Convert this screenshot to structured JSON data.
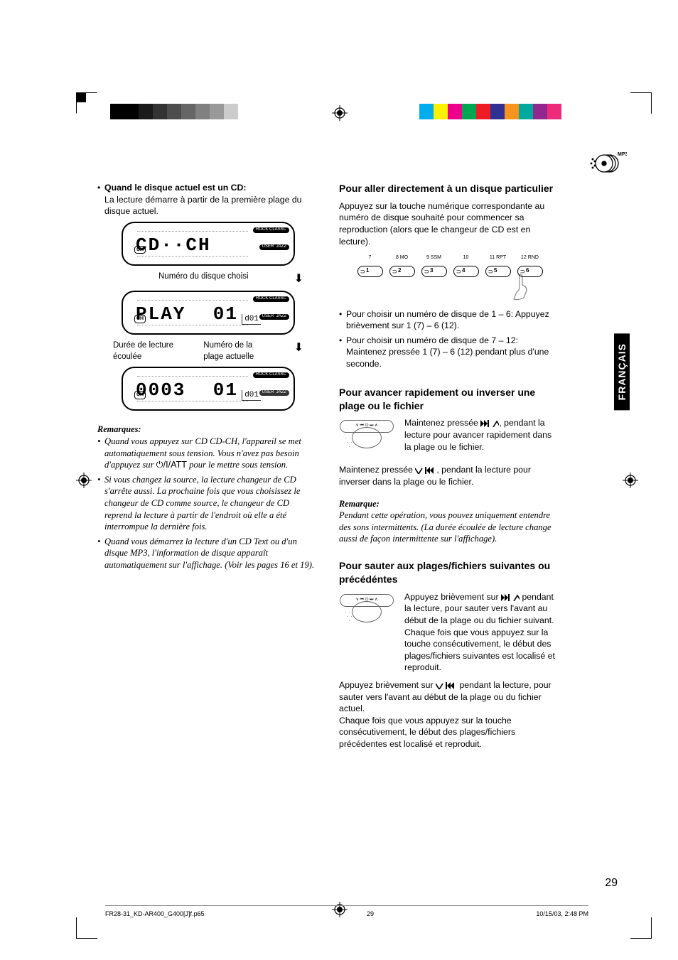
{
  "registration_bars": {
    "left_colors": [
      "#000000",
      "#000000",
      "#1a1a1a",
      "#333333",
      "#4d4d4d",
      "#666666",
      "#808080",
      "#999999",
      "#cccccc",
      "#ffffff"
    ],
    "right_colors": [
      "#00aeef",
      "#fff200",
      "#ec008c",
      "#00a651",
      "#ed1c24",
      "#2e3192",
      "#f7941d",
      "#00a99d",
      "#92278f",
      "#ee2a7b"
    ]
  },
  "mp3_label": "MP3",
  "left_col": {
    "bullet1_bold": "Quand le disque actuel est un CD:",
    "bullet1_text": "La lecture démarre à partir de la première plage du disque actuel.",
    "lcd1": {
      "main": "CD··CH",
      "d": "",
      "tags": [
        "ROCK CLASSC",
        "USER  JAZZ"
      ]
    },
    "caption1": "Numéro du disque choisi",
    "lcd2": {
      "main_l": "PLAY",
      "main_r": "01",
      "d": "d01"
    },
    "caption2_l": "Durée de lecture écoulée",
    "caption2_r": "Numéro de la plage actuelle",
    "lcd3": {
      "main_l": "0003",
      "main_r": "01",
      "d": "d01"
    },
    "remarks_title": "Remarques:",
    "rem1": "Quand vous appuyez sur CD CD-CH, l'appareil se met automatiquement sous tension. Vous n'avez pas besoin d'appuyez sur ",
    "rem1_sym": "⏻/I/ATT",
    "rem1_end": " pour le mettre sous tension.",
    "rem2": "Si vous changez la source, la lecture changeur de CD s'arrête aussi. La prochaine fois que vous choisissez le changeur de CD comme source, le changeur de CD reprend la lecture à partir de l'endroit où elle a été interrompue la dernière fois.",
    "rem3": "Quand vous démarrez la lecture d'un CD Text ou d'un disque MP3, l'information de disque apparaît automatiquement sur l'affichage. (Voir les pages 16 et 19)."
  },
  "right_col": {
    "h1": "Pour aller directement à un disque particulier",
    "p1": "Appuyez sur la touche numérique correspondante au numéro de disque souhaité pour commencer sa reproduction (alors que le changeur de CD est en lecture).",
    "btn_tops": [
      "7",
      "8  MO",
      "9  SSM",
      "10",
      "11 RPT",
      "12 RND"
    ],
    "btns": [
      "1",
      "2",
      "3",
      "4",
      "5",
      "6"
    ],
    "b1": "Pour choisir un numéro de disque de 1 – 6: Appuyez brièvement sur 1 (7) – 6 (12).",
    "b2": "Pour choisir un numéro de disque de 7 – 12: Maintenez pressée 1 (7) – 6 (12) pendant plus d'une seconde.",
    "h2": "Pour avancer rapidement ou inverser une plage ou le fichier",
    "p2a": "Maintenez pressée ",
    "p2b": ", pendant la lecture pour avancer rapidement dans la plage ou le fichier.",
    "p3a": "Maintenez pressée ",
    "p3b": ", pendant la lecture pour inverser dans la plage ou le fichier.",
    "remark_title": "Remarque:",
    "remark": "Pendant cette opération, vous pouvez uniquement entendre des sons intermittents. (La durée écoulée de lecture change aussi de façon intermittente sur l'affichage).",
    "h3": "Pour sauter aux plages/fichiers suivantes ou précédéntes",
    "p4a": "Appuyez brièvement sur ",
    "p4b": " pendant la lecture, pour sauter vers l'avant au début de la plage ou du fichier suivant.",
    "p4c": "Chaque fois que vous appuyez sur la touche consécutivement, le début des plages/fichiers suivantes est localisé et reproduit.",
    "p5a": "Appuyez brièvement sur ",
    "p5b": " pendant la lecture, pour sauter vers l'avant au début de la plage ou du fichier actuel.",
    "p5c": "Chaque fois que vous appuyez sur la touche consécutivement, le début des plages/fichiers précédentes est localisé et reproduit."
  },
  "sidebar": "FRANÇAIS",
  "page_number": "29",
  "footer": {
    "file": "FR28-31_KD-AR400_G400[J]f.p65",
    "page": "29",
    "date": "10/15/03, 2:48 PM"
  }
}
